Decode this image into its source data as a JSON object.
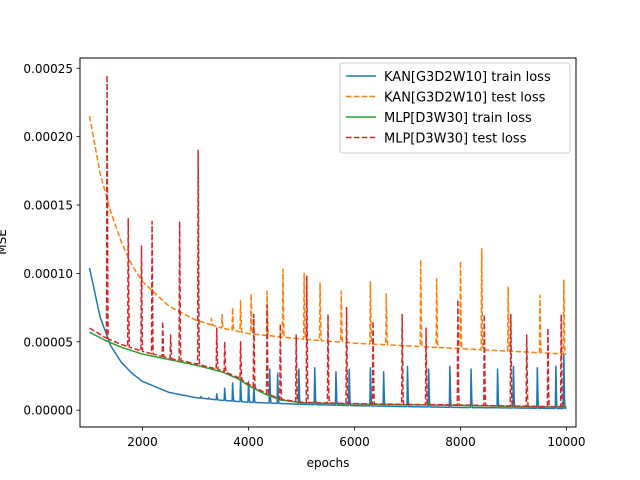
{
  "chart_data": {
    "type": "line",
    "title": "",
    "xlabel": "epochs",
    "ylabel": "MSE",
    "xlim": [
      820,
      10180
    ],
    "ylim": [
      -1.23e-05,
      0.0002575
    ],
    "xticks": [
      2000,
      4000,
      6000,
      8000,
      10000
    ],
    "xtick_labels": [
      "2000",
      "4000",
      "6000",
      "8000",
      "10000"
    ],
    "yticks": [
      0,
      5e-05,
      0.0001,
      0.00015,
      0.0002,
      0.00025
    ],
    "ytick_labels": [
      "0.00000",
      "0.00005",
      "0.00010",
      "0.00015",
      "0.00020",
      "0.00025"
    ],
    "grid": false,
    "legend_position": "top-right",
    "series": [
      {
        "name": "KAN[G3D2W10] train loss",
        "color": "#1f77b4",
        "style": "solid",
        "x": [
          1000,
          1200,
          1400,
          1600,
          1800,
          2000,
          2500,
          3000,
          3500,
          4000,
          5000,
          6000,
          7000,
          8000,
          9000,
          10000
        ],
        "y": [
          0.000104,
          6.8e-05,
          4.7e-05,
          3.5e-05,
          2.7e-05,
          2.1e-05,
          1.3e-05,
          9.2e-06,
          7.2e-06,
          5.8e-06,
          4.3e-06,
          3.3e-06,
          2.6e-06,
          2e-06,
          1.6e-06,
          1.2e-06
        ],
        "spikes": [
          [
            3100,
            1e-05
          ],
          [
            3250,
            9e-06
          ],
          [
            3400,
            1.2e-05
          ],
          [
            3550,
            1.6e-05
          ],
          [
            3700,
            2e-05
          ],
          [
            3850,
            2.3e-05
          ],
          [
            4000,
            2.1e-05
          ],
          [
            4100,
            1.8e-05
          ],
          [
            4400,
            3e-05
          ],
          [
            4550,
            2.7e-05
          ],
          [
            4950,
            3e-05
          ],
          [
            5250,
            3.1e-05
          ],
          [
            5650,
            2.8e-05
          ],
          [
            5900,
            3e-05
          ],
          [
            6300,
            3.1e-05
          ],
          [
            6550,
            2.8e-05
          ],
          [
            7000,
            3.2e-05
          ],
          [
            7400,
            3e-05
          ],
          [
            7800,
            3.2e-05
          ],
          [
            8200,
            3e-05
          ],
          [
            8700,
            3e-05
          ],
          [
            9000,
            3.2e-05
          ],
          [
            9450,
            3.1e-05
          ],
          [
            9800,
            3.2e-05
          ],
          [
            9950,
            4.1e-05
          ]
        ]
      },
      {
        "name": "KAN[G3D2W10] test loss",
        "color": "#ff7f0e",
        "style": "dashed",
        "x": [
          1000,
          1200,
          1400,
          1600,
          1800,
          2000,
          2500,
          3000,
          3500,
          4000,
          5000,
          6000,
          7000,
          8000,
          9000,
          10000
        ],
        "y": [
          0.000215,
          0.000173,
          0.000145,
          0.000123,
          0.000106,
          9.4e-05,
          7.6e-05,
          6.6e-05,
          6e-05,
          5.6e-05,
          5.2e-05,
          4.9e-05,
          4.7e-05,
          4.5e-05,
          4.3e-05,
          4.1e-05
        ],
        "spikes": [
          [
            3300,
            6.7e-05
          ],
          [
            3500,
            7e-05
          ],
          [
            3700,
            7.5e-05
          ],
          [
            3850,
            8e-05
          ],
          [
            4050,
            8.5e-05
          ],
          [
            4350,
            8.7e-05
          ],
          [
            4650,
            0.000103
          ],
          [
            5050,
            0.0001
          ],
          [
            5350,
            9.3e-05
          ],
          [
            5750,
            8.7e-05
          ],
          [
            6300,
            9.4e-05
          ],
          [
            6600,
            8.5e-05
          ],
          [
            7250,
            0.00011
          ],
          [
            7550,
            9.6e-05
          ],
          [
            8000,
            0.000109
          ],
          [
            8400,
            0.000118
          ],
          [
            8900,
            9e-05
          ],
          [
            9500,
            8.4e-05
          ],
          [
            9950,
            9.5e-05
          ]
        ]
      },
      {
        "name": "MLP[D3W30] train loss",
        "color": "#2ca02c",
        "style": "solid",
        "x": [
          1000,
          1300,
          1600,
          2000,
          2500,
          3000,
          3500,
          3800,
          4000,
          4300,
          4600,
          5000,
          6000,
          7000,
          8000,
          9000,
          10000
        ],
        "y": [
          5.7e-05,
          5.1e-05,
          4.6e-05,
          4.1e-05,
          3.7e-05,
          3.3e-05,
          2.8e-05,
          2.3e-05,
          1.8e-05,
          1.2e-05,
          7.5e-06,
          5.5e-06,
          4.5e-06,
          4e-06,
          3.5e-06,
          2.8e-06,
          2.2e-06
        ],
        "spikes": []
      },
      {
        "name": "MLP[D3W30] test loss",
        "color": "#d62728",
        "style": "dashed",
        "x": [
          1000,
          1300,
          1600,
          2000,
          2500,
          3000,
          3500,
          3800,
          4000,
          4300,
          4600,
          5000,
          6000,
          7000,
          8000,
          9000,
          10000
        ],
        "y": [
          6e-05,
          5.3e-05,
          4.8e-05,
          4.3e-05,
          3.8e-05,
          3.4e-05,
          2.9e-05,
          2.4e-05,
          1.9e-05,
          1.3e-05,
          8e-06,
          5.8e-06,
          4.8e-06,
          4.2e-06,
          3.8e-06,
          3e-06,
          2.5e-06
        ],
        "spikes": [
          [
            1330,
            0.000245
          ],
          [
            1730,
            0.00014
          ],
          [
            1980,
            0.00012
          ],
          [
            2180,
            0.000138
          ],
          [
            2380,
            6.5e-05
          ],
          [
            2530,
            5.5e-05
          ],
          [
            2700,
            0.000138
          ],
          [
            3050,
            0.00019
          ],
          [
            3400,
            6e-05
          ],
          [
            3550,
            5e-05
          ],
          [
            3850,
            5e-05
          ],
          [
            4100,
            7e-05
          ],
          [
            4350,
            7.7e-05
          ],
          [
            4600,
            6.3e-05
          ],
          [
            4900,
            5.5e-05
          ],
          [
            5100,
            9.8e-05
          ],
          [
            5500,
            7e-05
          ],
          [
            5850,
            7.5e-05
          ],
          [
            6350,
            6.5e-05
          ],
          [
            6900,
            7e-05
          ],
          [
            7350,
            6e-05
          ],
          [
            7950,
            8.1e-05
          ],
          [
            8450,
            7e-05
          ],
          [
            8950,
            7e-05
          ],
          [
            9250,
            5.5e-05
          ],
          [
            9650,
            6e-05
          ],
          [
            9900,
            7e-05
          ]
        ]
      }
    ]
  }
}
